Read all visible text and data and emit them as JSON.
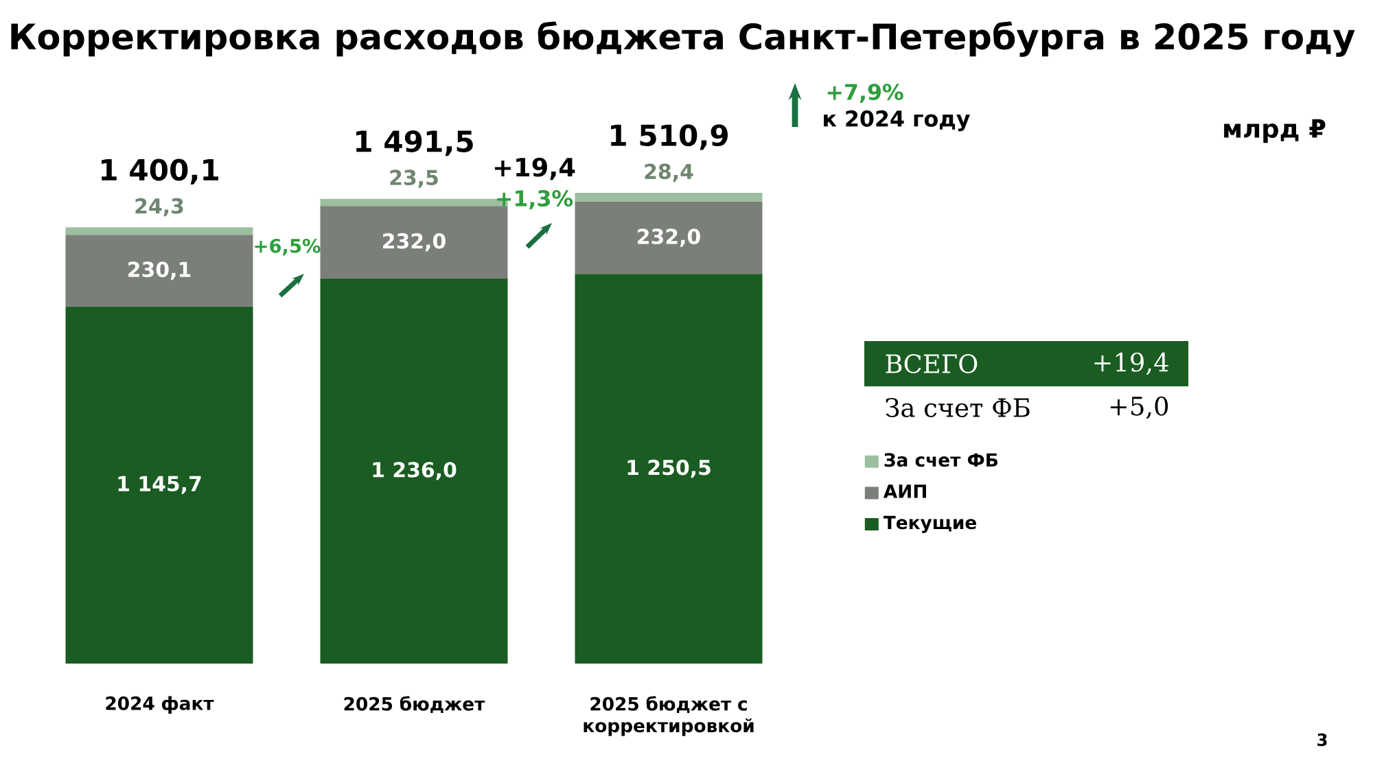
{
  "chart_data": {
    "type": "bar",
    "stacked": true,
    "title": "Корректировка расходов бюджета Санкт-Петербурга в 2025 году",
    "categories": [
      "2024 факт",
      "2025 бюджет",
      "2025 бюджет с корректировкой"
    ],
    "series": [
      {
        "name": "Текущие",
        "color": "#1a5c22",
        "values": [
          1145.7,
          1236.0,
          1250.5
        ],
        "value_labels": [
          "1 145,7",
          "1 236,0",
          "1 250,5"
        ]
      },
      {
        "name": "АИП",
        "color": "#7b7f79",
        "values": [
          230.1,
          232.0,
          232.0
        ],
        "value_labels": [
          "230,1",
          "232,0",
          "232,0"
        ]
      },
      {
        "name": "За счет ФБ",
        "color": "#9dbf9f",
        "values": [
          24.3,
          23.5,
          28.4
        ],
        "value_labels": [
          "24,3",
          "23,5",
          "28,4"
        ]
      }
    ],
    "totals": [
      "1 400,1",
      "1 491,5",
      "1 510,9"
    ],
    "legend": "right",
    "annotations": [
      "+6,5%",
      "+19,4",
      "+1,3%",
      "+7,9%",
      "к 2024 году",
      "ВСЕГО",
      "+19,4",
      "За счет ФБ",
      "+5,0",
      "3",
      "млрд ₽"
    ]
  }
}
